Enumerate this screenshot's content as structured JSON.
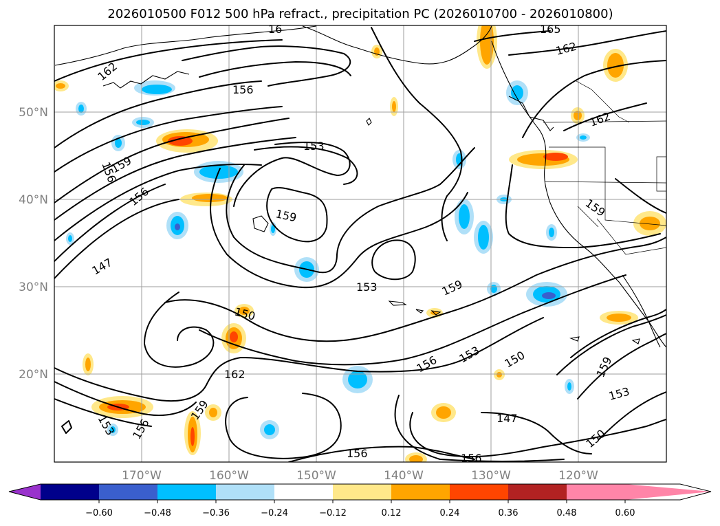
{
  "title": "2026010500 F012 500 hPa refract., precipitation PC (2026010700 - 2026010800)",
  "map": {
    "lat_labels": [
      "50°N",
      "40°N",
      "30°N",
      "20°N"
    ],
    "lon_labels": [
      "170°W",
      "160°W",
      "150°W",
      "140°W",
      "130°W",
      "120°W"
    ],
    "contour_labels": [
      "162",
      "156",
      "153",
      "159",
      "156",
      "156",
      "147",
      "159",
      "153",
      "159",
      "150",
      "162",
      "159",
      "153",
      "156",
      "153",
      "150",
      "156",
      "159",
      "153",
      "147",
      "150",
      "156",
      "156",
      "162",
      "159",
      "165",
      "162",
      "16"
    ]
  },
  "colorbar": {
    "ticks": [
      "−0.60",
      "−0.48",
      "−0.36",
      "−0.24",
      "−0.12",
      "0.12",
      "0.24",
      "0.36",
      "0.48",
      "0.60"
    ],
    "colors": [
      "#9932cc",
      "#00008b",
      "#3a5fcd",
      "#00bfff",
      "#b0e0f8",
      "#ffffff",
      "#ffe88a",
      "#ffa500",
      "#ff4500",
      "#b22222",
      "#ff85a8"
    ]
  }
}
